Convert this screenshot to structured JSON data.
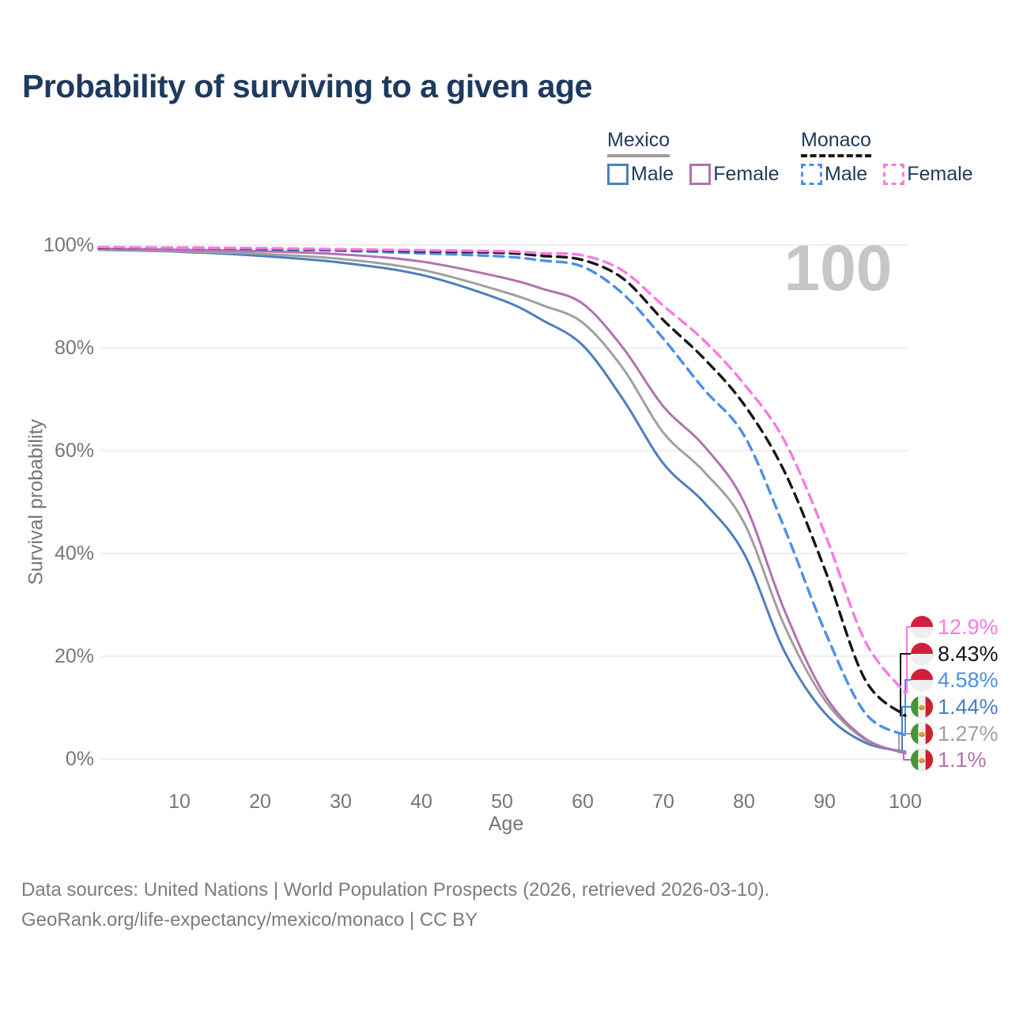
{
  "title": "Probability of surviving to a given age",
  "watermark": "100",
  "legend": {
    "groups": [
      {
        "country": "Mexico",
        "line_style": "solid",
        "underline_color": "#9e9e9e",
        "items": [
          {
            "label": "Male",
            "color": "#4d7ec0",
            "dashed": false
          },
          {
            "label": "Female",
            "color": "#b172af",
            "dashed": false
          }
        ]
      },
      {
        "country": "Monaco",
        "line_style": "dashed",
        "underline_color": "#1a1a1a",
        "items": [
          {
            "label": "Male",
            "color": "#4a90e8",
            "dashed": true
          },
          {
            "label": "Female",
            "color": "#fb79e3",
            "dashed": true
          }
        ]
      }
    ]
  },
  "chart_data": {
    "type": "line",
    "title": "Probability of surviving to a given age",
    "xlabel": "Age",
    "ylabel": "Survival probability",
    "xlim": [
      0,
      100
    ],
    "ylim": [
      0,
      100
    ],
    "grid": "horizontal",
    "legend_position": "top-right",
    "x_ticks": [
      10,
      20,
      30,
      40,
      50,
      60,
      70,
      80,
      90,
      100
    ],
    "y_ticks": [
      0,
      20,
      40,
      60,
      80,
      100
    ],
    "y_tick_suffix": "%",
    "annotation_age_marker": "100",
    "ages": [
      0,
      10,
      20,
      30,
      40,
      50,
      55,
      60,
      65,
      70,
      75,
      80,
      85,
      90,
      95,
      100
    ],
    "series": [
      {
        "name": "Mexico Male",
        "country": "Mexico",
        "sex": "Male",
        "flag": "mexico",
        "color": "#4d7ec0",
        "dashed": false,
        "final_label": "1.44%",
        "final_value": 1.44,
        "values": [
          99.1,
          98.7,
          97.9,
          96.6,
          94.2,
          89.3,
          85.4,
          80.5,
          70.0,
          57.5,
          50.0,
          40.0,
          21.0,
          9.0,
          3.2,
          1.44
        ]
      },
      {
        "name": "Mexico Combined",
        "country": "Mexico",
        "sex": "Both",
        "flag": "mexico",
        "color": "#a0a0a0",
        "dashed": false,
        "final_label": "1.27%",
        "final_value": 1.27,
        "values": [
          99.2,
          98.8,
          98.3,
          97.3,
          95.2,
          91.0,
          88.3,
          84.9,
          76.0,
          63.5,
          56.0,
          46.0,
          26.0,
          11.5,
          3.8,
          1.27
        ]
      },
      {
        "name": "Mexico Female",
        "country": "Mexico",
        "sex": "Female",
        "flag": "mexico",
        "color": "#b172af",
        "dashed": false,
        "final_label": "1.1%",
        "final_value": 1.1,
        "values": [
          99.3,
          99.1,
          98.8,
          98.2,
          96.8,
          93.7,
          91.5,
          88.6,
          80.0,
          68.6,
          61.0,
          50.0,
          29.0,
          12.5,
          4.0,
          1.1
        ]
      },
      {
        "name": "Monaco Male",
        "country": "Monaco",
        "sex": "Male",
        "flag": "monaco",
        "color": "#4a90e8",
        "dashed": true,
        "final_label": "4.58%",
        "final_value": 4.58,
        "values": [
          99.5,
          99.4,
          99.2,
          98.9,
          98.4,
          97.8,
          97.0,
          95.8,
          90.5,
          81.8,
          72.0,
          63.0,
          45.0,
          25.0,
          9.0,
          4.58
        ]
      },
      {
        "name": "Monaco Combined",
        "country": "Monaco",
        "sex": "Both",
        "flag": "monaco",
        "color": "#161616",
        "dashed": true,
        "final_label": "8.43%",
        "final_value": 8.43,
        "values": [
          99.5,
          99.5,
          99.3,
          99.1,
          98.8,
          98.5,
          97.9,
          97.1,
          93.5,
          85.4,
          78.0,
          69.0,
          56.0,
          37.0,
          15.5,
          8.43
        ]
      },
      {
        "name": "Monaco Female",
        "country": "Monaco",
        "sex": "Female",
        "flag": "monaco",
        "color": "#fb79e3",
        "dashed": true,
        "final_label": "12.9%",
        "final_value": 12.9,
        "values": [
          99.6,
          99.5,
          99.4,
          99.2,
          99.0,
          98.8,
          98.4,
          98.0,
          95.0,
          88.2,
          81.5,
          73.0,
          62.0,
          44.0,
          23.0,
          12.9
        ]
      }
    ]
  },
  "footer": {
    "line1": "Data sources: United Nations | World Population Prospects (2026, retrieved 2026-03-10).",
    "line2": "GeoRank.org/life-expectancy/mexico/monaco | CC BY"
  },
  "colors": {
    "title_text": "#1e3a5f",
    "legend_text": "#213b5c",
    "axis_text": "#767676",
    "gridline": "#e8e8e8",
    "watermark": "#c6c6c6",
    "footer_text": "#7c7c7c",
    "monaco_flag_red": "#d21f3c",
    "mexico_flag_green": "#449637",
    "mexico_flag_red": "#cd202c"
  }
}
